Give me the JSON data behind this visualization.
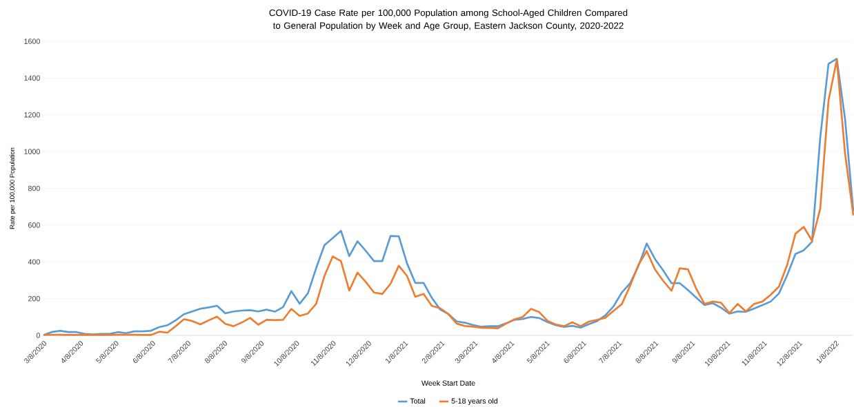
{
  "chart_data": {
    "type": "line",
    "title": "COVID-19 Case Rate per 100,000 Population among School-Aged Children Compared to General Population by Week and Age Group, Eastern Jackson County, 2020-2022",
    "xlabel": "Week Start Date",
    "ylabel": "Rate per 100,000 Population",
    "x": [
      "2020-03-08",
      "2020-03-15",
      "2020-03-22",
      "2020-03-29",
      "2020-04-05",
      "2020-04-12",
      "2020-04-19",
      "2020-04-26",
      "2020-05-03",
      "2020-05-10",
      "2020-05-17",
      "2020-05-24",
      "2020-05-31",
      "2020-06-07",
      "2020-06-14",
      "2020-06-21",
      "2020-06-28",
      "2020-07-05",
      "2020-07-12",
      "2020-07-19",
      "2020-07-26",
      "2020-08-02",
      "2020-08-09",
      "2020-08-16",
      "2020-08-23",
      "2020-08-30",
      "2020-09-06",
      "2020-09-13",
      "2020-09-20",
      "2020-09-27",
      "2020-10-04",
      "2020-10-11",
      "2020-10-18",
      "2020-10-25",
      "2020-11-01",
      "2020-11-08",
      "2020-11-15",
      "2020-11-22",
      "2020-11-29",
      "2020-12-06",
      "2020-12-13",
      "2020-12-20",
      "2020-12-27",
      "2021-01-03",
      "2021-01-10",
      "2021-01-17",
      "2021-01-24",
      "2021-01-31",
      "2021-02-07",
      "2021-02-14",
      "2021-02-21",
      "2021-02-28",
      "2021-03-07",
      "2021-03-14",
      "2021-03-21",
      "2021-03-28",
      "2021-04-04",
      "2021-04-11",
      "2021-04-18",
      "2021-04-25",
      "2021-05-02",
      "2021-05-09",
      "2021-05-16",
      "2021-05-23",
      "2021-05-30",
      "2021-06-06",
      "2021-06-13",
      "2021-06-20",
      "2021-06-27",
      "2021-07-04",
      "2021-07-11",
      "2021-07-18",
      "2021-07-25",
      "2021-08-01",
      "2021-08-08",
      "2021-08-15",
      "2021-08-22",
      "2021-08-29",
      "2021-09-05",
      "2021-09-12",
      "2021-09-19",
      "2021-09-26",
      "2021-10-03",
      "2021-10-10",
      "2021-10-17",
      "2021-10-24",
      "2021-10-31",
      "2021-11-07",
      "2021-11-14",
      "2021-11-21",
      "2021-11-28",
      "2021-12-05",
      "2021-12-12",
      "2021-12-19",
      "2021-12-26",
      "2022-01-02",
      "2022-01-09",
      "2022-01-16",
      "2022-01-23"
    ],
    "series": [
      {
        "name": "Total",
        "color": "#5b9bd5",
        "values": [
          2,
          18,
          25,
          18,
          18,
          8,
          5,
          8,
          8,
          18,
          12,
          22,
          22,
          25,
          45,
          55,
          82,
          115,
          130,
          145,
          152,
          161,
          120,
          130,
          135,
          137,
          130,
          140,
          129,
          154,
          241,
          172,
          229,
          366,
          491,
          529,
          569,
          431,
          512,
          460,
          404,
          404,
          541,
          539,
          391,
          285,
          285,
          204,
          141,
          116,
          76,
          69,
          56,
          47,
          50,
          50,
          66,
          85,
          89,
          100,
          94,
          72,
          55,
          46,
          52,
          42,
          61,
          78,
          109,
          159,
          234,
          284,
          378,
          500,
          415,
          353,
          284,
          284,
          246,
          205,
          165,
          175,
          150,
          118,
          130,
          128,
          146,
          165,
          184,
          228,
          328,
          443,
          463,
          509,
          1078,
          1478,
          1505,
          1178,
          675
        ]
      },
      {
        "name": "5-18 years old",
        "color": "#ed7d31",
        "values": [
          2,
          3,
          3,
          2,
          2,
          3,
          2,
          2,
          2,
          3,
          3,
          3,
          2,
          2,
          20,
          15,
          50,
          88,
          78,
          60,
          82,
          102,
          63,
          50,
          70,
          95,
          58,
          85,
          83,
          85,
          144,
          106,
          119,
          172,
          323,
          429,
          404,
          244,
          341,
          291,
          233,
          225,
          281,
          379,
          323,
          210,
          226,
          160,
          148,
          116,
          64,
          51,
          47,
          41,
          41,
          39,
          64,
          87,
          100,
          144,
          126,
          79,
          59,
          50,
          71,
          50,
          75,
          84,
          96,
          134,
          171,
          271,
          384,
          459,
          359,
          296,
          243,
          365,
          359,
          253,
          171,
          184,
          178,
          121,
          171,
          130,
          171,
          184,
          221,
          265,
          384,
          553,
          590,
          515,
          690,
          1278,
          1500,
          990,
          653
        ]
      }
    ],
    "xlim": [
      "2020-03-08",
      "2022-01-23"
    ],
    "xticks": [
      {
        "value": "2020-03-08",
        "label": "3/8/2020"
      },
      {
        "value": "2020-04-08",
        "label": "4/8/2020"
      },
      {
        "value": "2020-05-08",
        "label": "5/8/2020"
      },
      {
        "value": "2020-06-08",
        "label": "6/8/2020"
      },
      {
        "value": "2020-07-08",
        "label": "7/8/2020"
      },
      {
        "value": "2020-08-08",
        "label": "8/8/2020"
      },
      {
        "value": "2020-09-08",
        "label": "9/8/2020"
      },
      {
        "value": "2020-10-08",
        "label": "10/8/2020"
      },
      {
        "value": "2020-11-08",
        "label": "11/8/2020"
      },
      {
        "value": "2020-12-08",
        "label": "12/8/2020"
      },
      {
        "value": "2021-01-08",
        "label": "1/8/2021"
      },
      {
        "value": "2021-02-08",
        "label": "2/8/2021"
      },
      {
        "value": "2021-03-08",
        "label": "3/8/2021"
      },
      {
        "value": "2021-04-08",
        "label": "4/8/2021"
      },
      {
        "value": "2021-05-08",
        "label": "5/8/2021"
      },
      {
        "value": "2021-06-08",
        "label": "6/8/2021"
      },
      {
        "value": "2021-07-08",
        "label": "7/8/2021"
      },
      {
        "value": "2021-08-08",
        "label": "8/8/2021"
      },
      {
        "value": "2021-09-08",
        "label": "9/8/2021"
      },
      {
        "value": "2021-10-08",
        "label": "10/8/2021"
      },
      {
        "value": "2021-11-08",
        "label": "11/8/2021"
      },
      {
        "value": "2021-12-08",
        "label": "12/8/2021"
      },
      {
        "value": "2022-01-08",
        "label": "1/8/2022"
      }
    ],
    "ylim": [
      0,
      1600
    ],
    "yticks": [
      0,
      200,
      400,
      600,
      800,
      1000,
      1200,
      1400,
      1600
    ],
    "grid": "y",
    "legend": "bottom"
  }
}
